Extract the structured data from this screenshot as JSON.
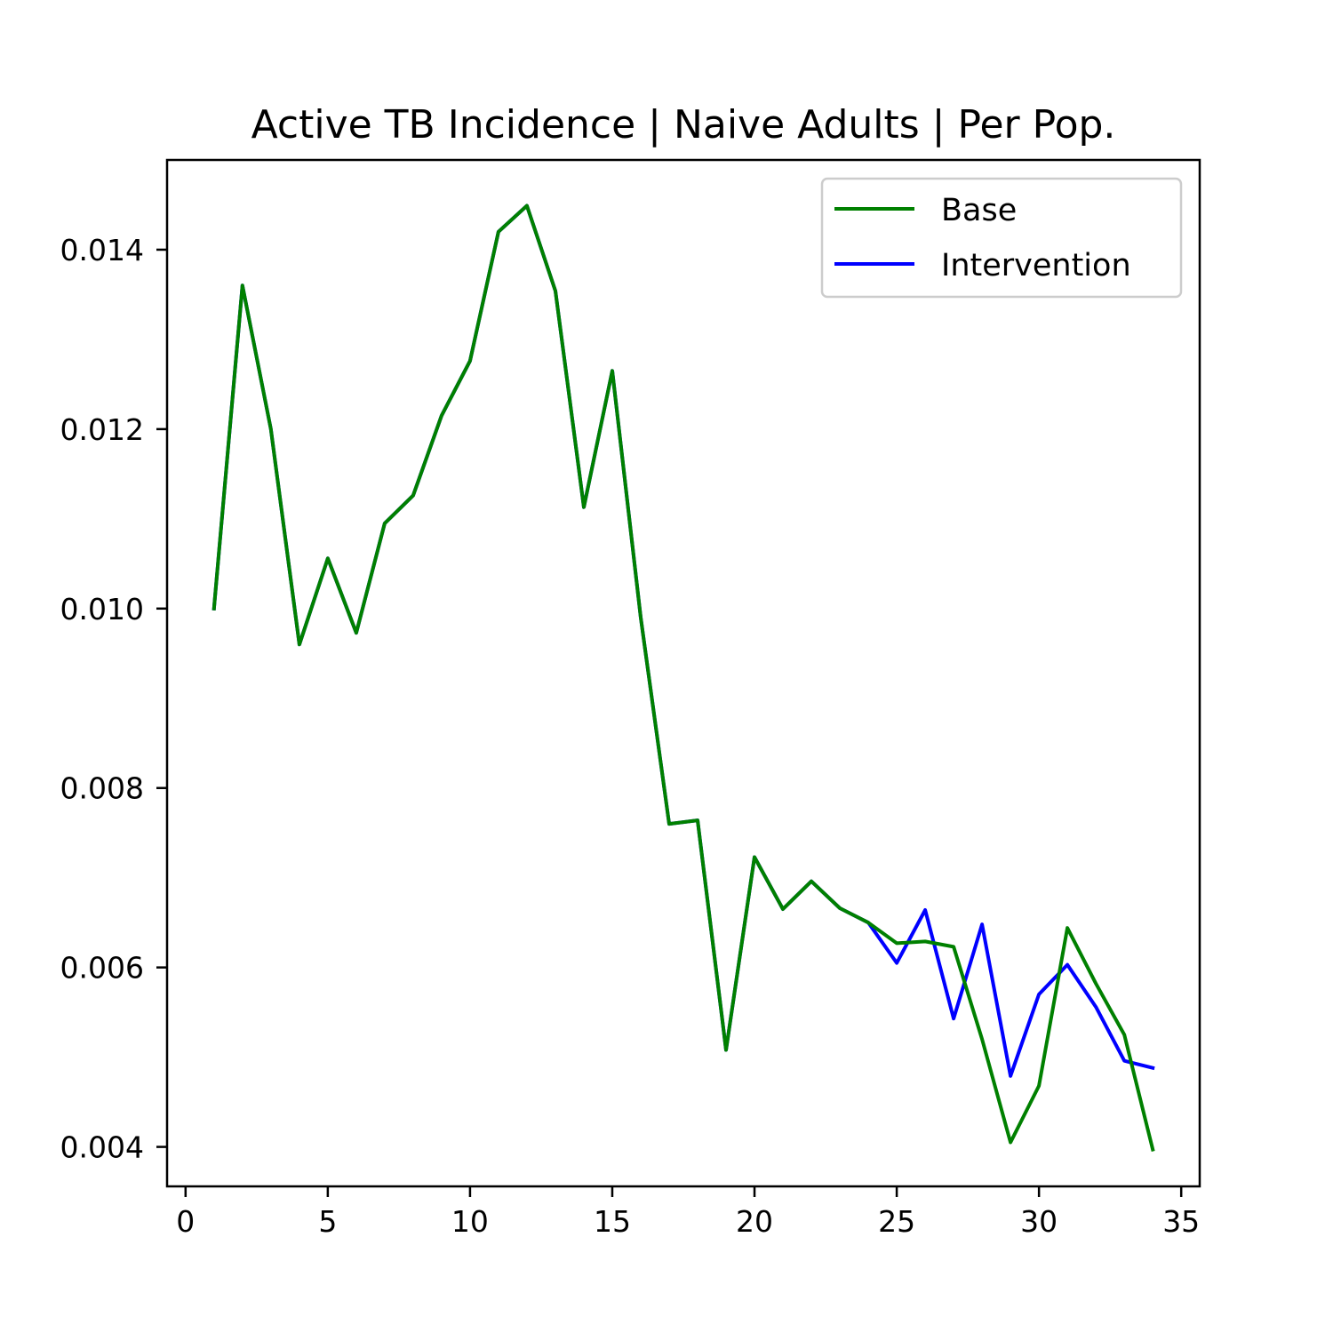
{
  "chart_data": {
    "type": "line",
    "title": "Active TB Incidence | Naive Adults | Per Pop.",
    "xlabel": "",
    "ylabel": "",
    "xlim": [
      -0.65,
      35.65
    ],
    "ylim": [
      0.00356,
      0.015
    ],
    "xticks": [
      0,
      5,
      10,
      15,
      20,
      25,
      30,
      35
    ],
    "xtick_labels": [
      "0",
      "5",
      "10",
      "15",
      "20",
      "25",
      "30",
      "35"
    ],
    "yticks": [
      0.004,
      0.006,
      0.008,
      0.01,
      0.012,
      0.014
    ],
    "ytick_labels": [
      "0.004",
      "0.006",
      "0.008",
      "0.010",
      "0.012",
      "0.014"
    ],
    "grid": false,
    "legend_position": "top-right",
    "x": [
      1,
      2,
      3,
      4,
      5,
      6,
      7,
      8,
      9,
      10,
      11,
      12,
      13,
      14,
      15,
      16,
      17,
      18,
      19,
      20,
      21,
      22,
      23,
      24,
      25,
      26,
      27,
      28,
      29,
      30,
      31,
      32,
      33,
      34
    ],
    "series": [
      {
        "name": "Intervention",
        "color": "#0000ff",
        "values": [
          0.01,
          0.0136,
          0.012,
          0.0096,
          0.01056,
          0.00973,
          0.01095,
          0.01126,
          0.01215,
          0.01276,
          0.0142,
          0.01449,
          0.01354,
          0.01113,
          0.01265,
          0.0099,
          0.0076,
          0.00764,
          0.00508,
          0.00723,
          0.00665,
          0.00696,
          0.00666,
          0.0065,
          0.00605,
          0.00664,
          0.00543,
          0.00648,
          0.00479,
          0.0057,
          0.00603,
          0.00556,
          0.00496,
          0.00488
        ]
      },
      {
        "name": "Base",
        "color": "#008000",
        "values": [
          0.01,
          0.0136,
          0.012,
          0.0096,
          0.01056,
          0.00973,
          0.01095,
          0.01126,
          0.01215,
          0.01276,
          0.0142,
          0.01449,
          0.01354,
          0.01113,
          0.01265,
          0.0099,
          0.0076,
          0.00764,
          0.00508,
          0.00723,
          0.00665,
          0.00696,
          0.00666,
          0.0065,
          0.00627,
          0.00629,
          0.00623,
          0.0052,
          0.00405,
          0.00468,
          0.00644,
          0.00582,
          0.00525,
          0.00397
        ]
      }
    ],
    "legend_order": [
      "Base",
      "Intervention"
    ]
  }
}
